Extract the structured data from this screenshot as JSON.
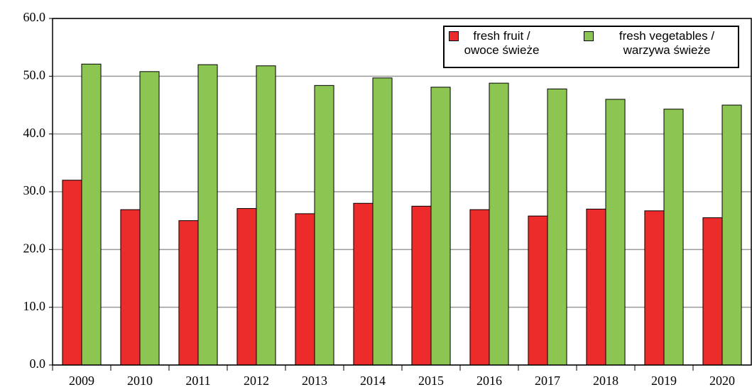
{
  "chart_data": {
    "type": "bar",
    "categories": [
      "2009",
      "2010",
      "2011",
      "2012",
      "2013",
      "2014",
      "2015",
      "2016",
      "2017",
      "2018",
      "2019",
      "2020"
    ],
    "series": [
      {
        "name": "fresh fruit / owoce świeże",
        "color": "#ee2b2b",
        "values": [
          32.0,
          26.9,
          25.0,
          27.1,
          26.2,
          28.0,
          27.5,
          26.9,
          25.8,
          27.0,
          26.7,
          25.5
        ]
      },
      {
        "name": "fresh vegetables / warzywa świeże",
        "color": "#8cc552",
        "values": [
          52.1,
          50.8,
          52.0,
          51.8,
          48.4,
          49.7,
          48.1,
          48.8,
          47.8,
          46.0,
          44.3,
          45.0
        ]
      }
    ],
    "ylim": [
      0,
      60
    ],
    "yticks": [
      {
        "value": 0,
        "label": "0.0"
      },
      {
        "value": 10,
        "label": "10.0"
      },
      {
        "value": 20,
        "label": "20.0"
      },
      {
        "value": 30,
        "label": "30.0"
      },
      {
        "value": 40,
        "label": "40.0"
      },
      {
        "value": 50,
        "label": "50.0"
      },
      {
        "value": 60,
        "label": "60.0"
      }
    ],
    "grid": true,
    "legend": "top-right"
  }
}
